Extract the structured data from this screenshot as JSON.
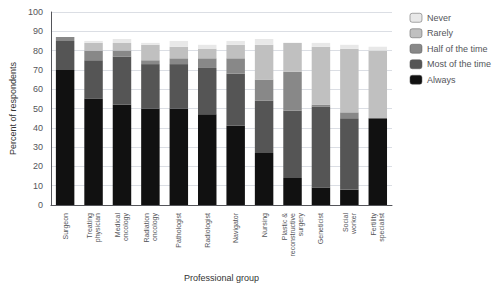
{
  "chart_data": {
    "type": "bar",
    "stacked": true,
    "xlabel": "Professional group",
    "ylabel": "Percent of respondents",
    "categories": [
      "Surgeon",
      "Treating\nphysician",
      "Medical\noncology",
      "Radiation\noncology",
      "Pathologist",
      "Radiologist",
      "Navigator",
      "Nursing",
      "Plastic &\nreconstructive\nsurgery",
      "Geneticist",
      "Social\nworker",
      "Fertility\nspecialist"
    ],
    "series": [
      {
        "name": "Always",
        "color": "#111111",
        "values": [
          70,
          55,
          52,
          50,
          50,
          47,
          41,
          27,
          14,
          9,
          8,
          45
        ]
      },
      {
        "name": "Most of the time",
        "color": "#555555",
        "values": [
          15,
          20,
          25,
          23,
          23,
          24,
          27,
          27,
          35,
          42,
          37,
          0
        ]
      },
      {
        "name": "Half of the time",
        "color": "#888888",
        "values": [
          2,
          5,
          3,
          2,
          3,
          5,
          8,
          11,
          20,
          1,
          3,
          0
        ]
      },
      {
        "name": "Rarely",
        "color": "#c0c0c0",
        "values": [
          0,
          4,
          4,
          8,
          6,
          5,
          7,
          18,
          15,
          30,
          33,
          35
        ]
      },
      {
        "name": "Never",
        "color": "#e8e8e8",
        "values": [
          0,
          1,
          2,
          1,
          3,
          2,
          2,
          3,
          0,
          2,
          2,
          2
        ]
      }
    ],
    "ylim": [
      0,
      100
    ],
    "yticks": [
      0,
      10,
      20,
      30,
      40,
      50,
      60,
      70,
      80,
      90,
      100
    ],
    "grid": true,
    "legend": "right"
  }
}
